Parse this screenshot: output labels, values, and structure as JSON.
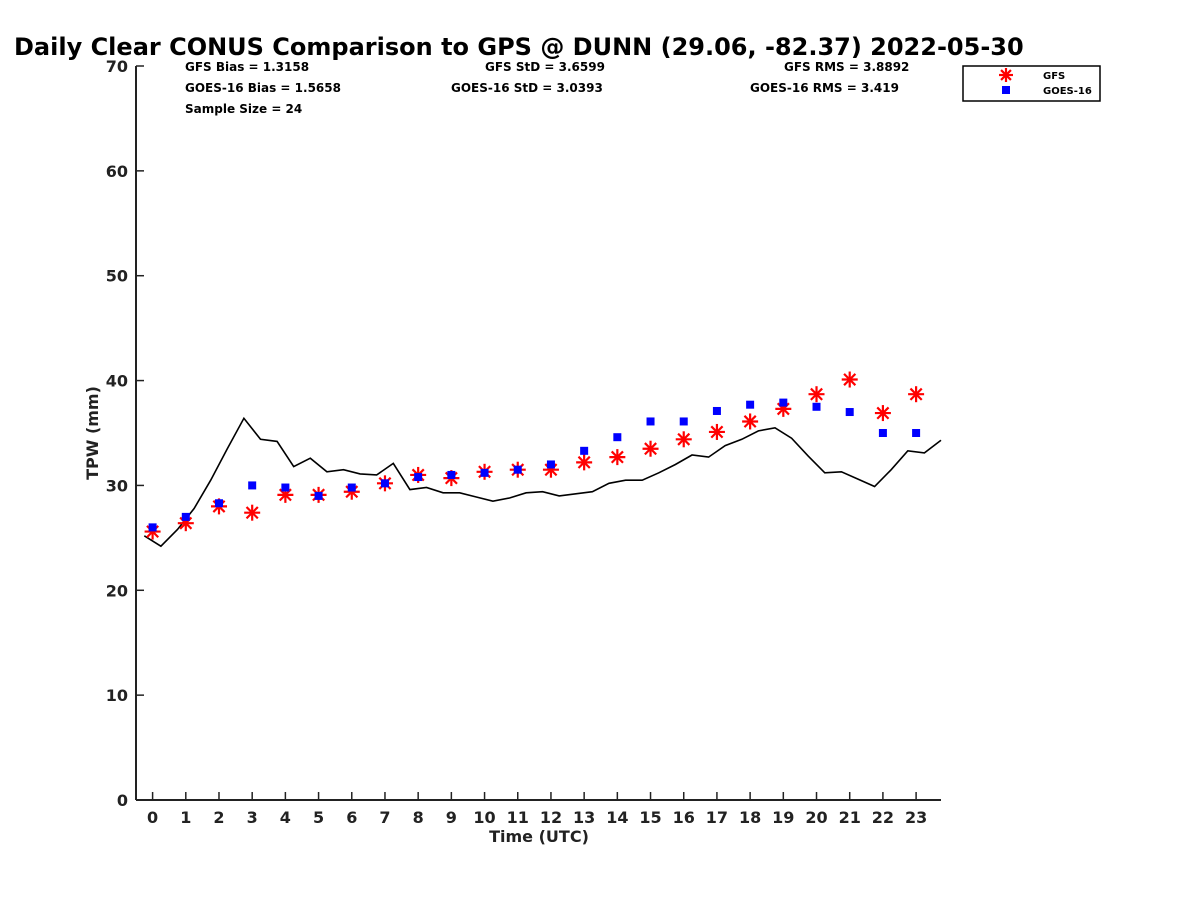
{
  "chart_data": {
    "type": "line",
    "title": "Daily Clear CONUS Comparison to GPS @ DUNN (29.06, -82.37) 2022-05-30",
    "xlabel": "Time (UTC)",
    "ylabel": "TPW (mm)",
    "xlim": [
      -0.5,
      23.75
    ],
    "ylim": [
      0,
      70
    ],
    "x_ticks": [
      "0",
      "1",
      "2",
      "3",
      "4",
      "5",
      "6",
      "7",
      "8",
      "9",
      "10",
      "11",
      "12",
      "13",
      "14",
      "15",
      "16",
      "17",
      "18",
      "19",
      "20",
      "21",
      "22",
      "23"
    ],
    "y_ticks": [
      "0",
      "10",
      "20",
      "30",
      "40",
      "50",
      "60",
      "70"
    ],
    "grid": false,
    "legend_position": "top-right",
    "stats": {
      "gfs_bias": "GFS Bias = 1.3158",
      "goes_bias": "GOES-16 Bias = 1.5658",
      "sample_size": "Sample Size = 24",
      "gfs_std": "GFS StD = 3.6599",
      "goes_std": "GOES-16 StD = 3.0393",
      "gfs_rms": "GFS RMS = 3.8892",
      "goes_rms": "GOES-16 RMS = 3.419"
    },
    "series": [
      {
        "name": "GFS",
        "style": "star-marker",
        "color": "#ff0000",
        "x": [
          0,
          1,
          2,
          3,
          4,
          5,
          6,
          7,
          8,
          9,
          10,
          11,
          12,
          13,
          14,
          15,
          16,
          17,
          18,
          19,
          20,
          21,
          22,
          23
        ],
        "values": [
          25.6,
          26.4,
          28.0,
          27.4,
          29.1,
          29.1,
          29.4,
          30.2,
          31.0,
          30.7,
          31.3,
          31.5,
          31.5,
          32.2,
          32.7,
          33.5,
          34.4,
          35.1,
          36.1,
          37.3,
          38.7,
          40.1,
          36.9,
          38.7
        ]
      },
      {
        "name": "GOES-16",
        "style": "square-marker",
        "color": "#0000ff",
        "x": [
          0,
          1,
          2,
          3,
          4,
          5,
          6,
          7,
          8,
          9,
          10,
          11,
          12,
          13,
          14,
          15,
          16,
          17,
          18,
          19,
          20,
          21,
          22,
          23
        ],
        "values": [
          26.0,
          27.0,
          28.3,
          30.0,
          29.8,
          29.0,
          29.8,
          30.2,
          30.8,
          31.0,
          31.2,
          31.5,
          32.0,
          33.3,
          34.6,
          36.1,
          36.1,
          37.1,
          37.7,
          37.9,
          37.5,
          37.0,
          35.0,
          35.0
        ]
      },
      {
        "style": "line",
        "color": "#000000",
        "x": [
          -0.25,
          0.25,
          0.75,
          1.25,
          1.75,
          2.25,
          2.75,
          3.25,
          3.75,
          4.25,
          4.75,
          5.25,
          5.75,
          6.25,
          6.75,
          7.25,
          7.75,
          8.25,
          8.75,
          9.25,
          9.75,
          10.25,
          10.75,
          11.25,
          11.75,
          12.25,
          12.75,
          13.25,
          13.75,
          14.25,
          14.75,
          15.25,
          15.75,
          16.25,
          16.75,
          17.25,
          17.75,
          18.25,
          18.75,
          19.25,
          19.75,
          20.25,
          20.75,
          21.25,
          21.75,
          22.25,
          22.75,
          23.25,
          23.75
        ],
        "values": [
          25.2,
          24.2,
          25.8,
          27.8,
          30.5,
          33.5,
          36.4,
          34.4,
          34.2,
          31.8,
          32.6,
          31.3,
          31.5,
          31.1,
          31.0,
          32.1,
          29.6,
          29.8,
          29.3,
          29.3,
          28.9,
          28.5,
          28.8,
          29.3,
          29.4,
          29.0,
          29.2,
          29.4,
          30.2,
          30.5,
          30.5,
          31.2,
          32.0,
          32.9,
          32.7,
          33.8,
          34.4,
          35.2,
          35.5,
          34.5,
          32.8,
          31.2,
          31.3,
          30.6,
          29.9,
          31.5,
          33.3,
          33.1,
          34.3
        ]
      }
    ]
  }
}
